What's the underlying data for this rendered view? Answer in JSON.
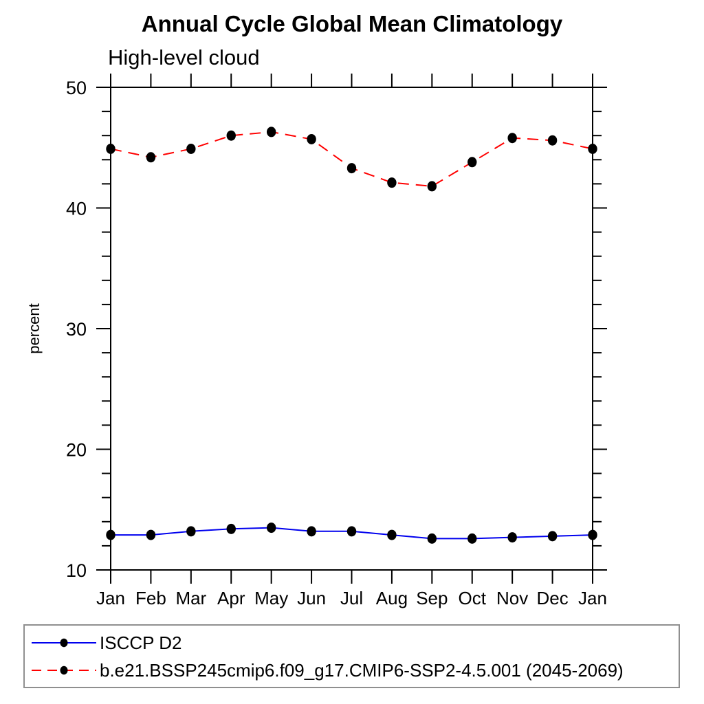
{
  "chart_data": {
    "type": "line",
    "title": "Annual Cycle Global Mean Climatology",
    "subtitle": "High-level cloud",
    "xlabel": "",
    "ylabel": "percent",
    "categories": [
      "Jan",
      "Feb",
      "Mar",
      "Apr",
      "May",
      "Jun",
      "Jul",
      "Aug",
      "Sep",
      "Oct",
      "Nov",
      "Dec",
      "Jan"
    ],
    "ylim": [
      10,
      50
    ],
    "yticks": [
      10,
      20,
      30,
      40,
      50
    ],
    "y_minor_step": 2,
    "grid": false,
    "legend_position": "bottom-box",
    "marker": "filled-circle",
    "marker_color": "#000000",
    "axis_color": "#000000",
    "series": [
      {
        "name": "ISCCP D2",
        "color": "#0000ee",
        "style": "solid",
        "values": [
          12.9,
          12.9,
          13.2,
          13.4,
          13.5,
          13.2,
          13.2,
          12.9,
          12.6,
          12.6,
          12.7,
          12.8,
          12.9
        ]
      },
      {
        "name": "b.e21.BSSP245cmip6.f09_g17.CMIP6-SSP2-4.5.001 (2045-2069)",
        "color": "#ff0000",
        "style": "dashed",
        "values": [
          44.9,
          44.2,
          44.9,
          46.0,
          46.3,
          45.7,
          43.3,
          42.1,
          41.8,
          43.8,
          45.8,
          45.6,
          44.9
        ]
      }
    ]
  }
}
